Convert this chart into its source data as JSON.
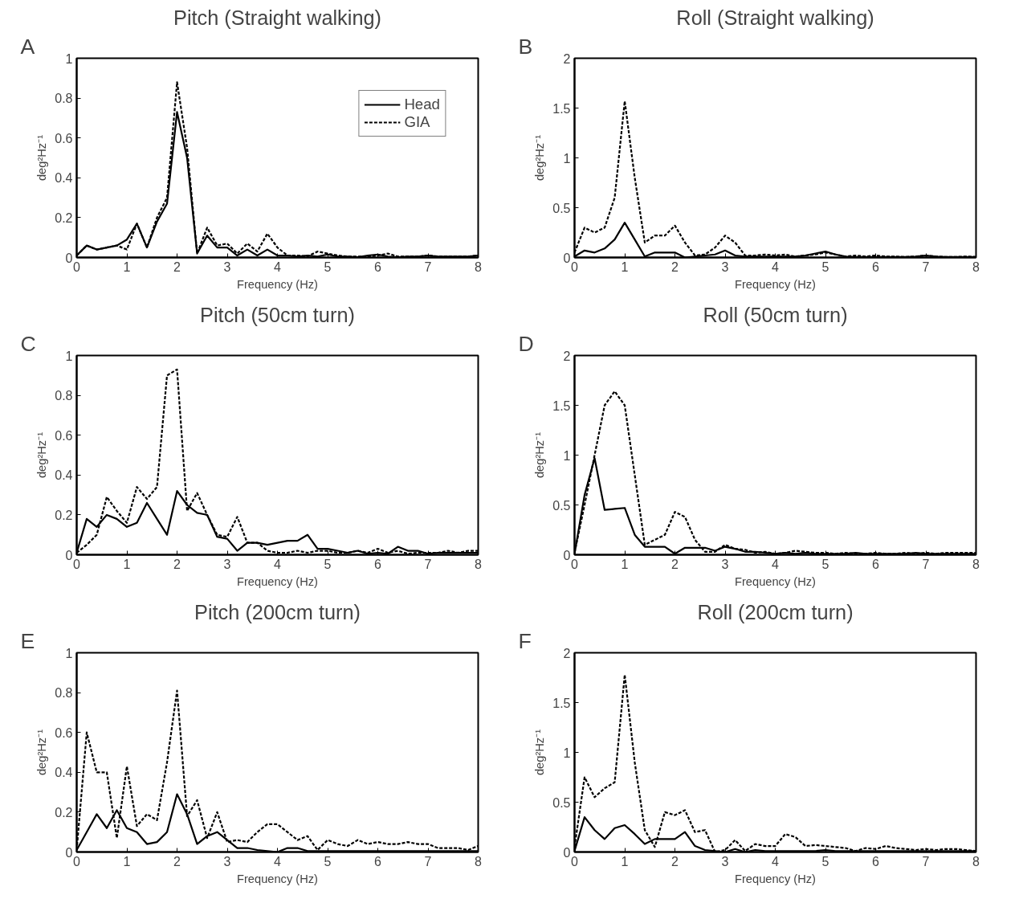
{
  "chart_data": [
    {
      "type": "line",
      "title": "Pitch (Straight walking)",
      "xlabel": "Frequency (Hz)",
      "ylabel": "deg²Hz⁻¹",
      "annotations": [
        "A"
      ],
      "legend": "top right",
      "x": [
        0,
        0.2,
        0.4,
        0.6,
        0.8,
        1,
        1.2,
        1.4,
        1.6,
        1.8,
        2,
        2.2,
        2.4,
        2.6,
        2.8,
        3,
        3.2,
        3.4,
        3.6,
        3.8,
        4,
        4.2,
        4.4,
        4.6,
        4.8,
        5,
        5.2,
        5.4,
        5.6,
        5.8,
        6,
        6.2,
        6.4,
        6.6,
        6.8,
        7,
        7.2,
        7.4,
        7.6,
        7.8,
        8
      ],
      "xlim": [
        0,
        8
      ],
      "xticks": [
        0,
        1,
        2,
        3,
        4,
        5,
        6,
        7,
        8
      ],
      "ylim": [
        0,
        1
      ],
      "yticks": [
        0,
        0.2,
        0.4,
        0.6,
        0.8,
        1
      ],
      "series": [
        {
          "name": "Head",
          "color": "#000000",
          "line_style": "solid",
          "values": [
            0.01,
            0.06,
            0.04,
            0.05,
            0.06,
            0.09,
            0.17,
            0.05,
            0.18,
            0.27,
            0.73,
            0.5,
            0.02,
            0.11,
            0.05,
            0.05,
            0.01,
            0.04,
            0.01,
            0.04,
            0.01,
            0.01,
            0.005,
            0.01,
            0.005,
            0.015,
            0.005,
            0.005,
            0.002,
            0.01,
            0.015,
            0.005,
            0.002,
            0.005,
            0.005,
            0.01,
            0.005,
            0.005,
            0.005,
            0.005,
            0.01
          ]
        },
        {
          "name": "GIA",
          "color": "#000000",
          "line_style": "dashed",
          "values": [
            0.01,
            0.06,
            0.04,
            0.05,
            0.06,
            0.04,
            0.17,
            0.05,
            0.2,
            0.3,
            0.88,
            0.55,
            0.02,
            0.15,
            0.06,
            0.07,
            0.02,
            0.07,
            0.03,
            0.12,
            0.05,
            0.01,
            0.01,
            0.005,
            0.03,
            0.02,
            0.01,
            0.005,
            0.005,
            0.005,
            0.01,
            0.02,
            0.005,
            0.005,
            0.005,
            0.01,
            0.005,
            0.005,
            0.005,
            0.005,
            0.01
          ]
        }
      ]
    },
    {
      "type": "line",
      "title": "Roll (Straight walking)",
      "xlabel": "Frequency (Hz)",
      "ylabel": "deg²Hz⁻¹",
      "annotations": [
        "B"
      ],
      "x": [
        0,
        0.2,
        0.4,
        0.6,
        0.8,
        1,
        1.2,
        1.4,
        1.6,
        1.8,
        2,
        2.2,
        2.4,
        2.6,
        2.8,
        3,
        3.2,
        3.4,
        3.6,
        3.8,
        4,
        4.2,
        4.4,
        4.6,
        4.8,
        5,
        5.2,
        5.4,
        5.6,
        5.8,
        6,
        6.2,
        6.4,
        6.6,
        6.8,
        7,
        7.2,
        7.4,
        7.6,
        7.8,
        8
      ],
      "xlim": [
        0,
        8
      ],
      "xticks": [
        0,
        1,
        2,
        3,
        4,
        5,
        6,
        7,
        8
      ],
      "ylim": [
        0,
        2
      ],
      "yticks": [
        0,
        0.5,
        1,
        1.5,
        2
      ],
      "series": [
        {
          "color": "#000000",
          "line_style": "solid",
          "values": [
            0.01,
            0.07,
            0.05,
            0.09,
            0.18,
            0.35,
            0.18,
            0.01,
            0.05,
            0.05,
            0.05,
            0,
            0.01,
            0.02,
            0.03,
            0.07,
            0.02,
            0.01,
            0.01,
            0.01,
            0.01,
            0.01,
            0.01,
            0.02,
            0.04,
            0.06,
            0.03,
            0.01,
            0.005,
            0.005,
            0.005,
            0.005,
            0.005,
            0.005,
            0.01,
            0.02,
            0.01,
            0.005,
            0.005,
            0.005,
            0.005
          ]
        },
        {
          "color": "#000000",
          "line_style": "dashed",
          "values": [
            0.05,
            0.3,
            0.25,
            0.3,
            0.6,
            1.57,
            0.8,
            0.15,
            0.22,
            0.22,
            0.32,
            0.15,
            0.02,
            0.03,
            0.1,
            0.22,
            0.15,
            0.02,
            0.02,
            0.03,
            0.02,
            0.03,
            0.01,
            0.02,
            0.03,
            0.05,
            0.03,
            0.01,
            0.02,
            0.01,
            0.02,
            0.01,
            0.01,
            0.005,
            0.01,
            0.02,
            0.01,
            0.005,
            0.005,
            0.01,
            0.005
          ]
        }
      ]
    },
    {
      "type": "line",
      "title": "Pitch (50cm turn)",
      "xlabel": "Frequency (Hz)",
      "ylabel": "deg²Hz⁻¹",
      "annotations": [
        "C"
      ],
      "x": [
        0,
        0.2,
        0.4,
        0.6,
        0.8,
        1,
        1.2,
        1.4,
        1.6,
        1.8,
        2,
        2.2,
        2.4,
        2.6,
        2.8,
        3,
        3.2,
        3.4,
        3.6,
        3.8,
        4,
        4.2,
        4.4,
        4.6,
        4.8,
        5,
        5.2,
        5.4,
        5.6,
        5.8,
        6,
        6.2,
        6.4,
        6.6,
        6.8,
        7,
        7.2,
        7.4,
        7.6,
        7.8,
        8
      ],
      "xlim": [
        0,
        8
      ],
      "xticks": [
        0,
        1,
        2,
        3,
        4,
        5,
        6,
        7,
        8
      ],
      "ylim": [
        0,
        1
      ],
      "yticks": [
        0,
        0.2,
        0.4,
        0.6,
        0.8,
        1
      ],
      "series": [
        {
          "color": "#000000",
          "line_style": "solid",
          "values": [
            0.01,
            0.18,
            0.14,
            0.2,
            0.18,
            0.14,
            0.16,
            0.26,
            0.18,
            0.1,
            0.32,
            0.25,
            0.21,
            0.2,
            0.09,
            0.08,
            0.02,
            0.06,
            0.06,
            0.05,
            0.06,
            0.07,
            0.07,
            0.1,
            0.03,
            0.03,
            0.02,
            0.01,
            0.02,
            0.005,
            0.01,
            0.005,
            0.04,
            0.02,
            0.02,
            0.005,
            0.01,
            0.01,
            0.01,
            0.01,
            0.01
          ]
        },
        {
          "color": "#000000",
          "line_style": "dashed",
          "values": [
            0.01,
            0.05,
            0.1,
            0.29,
            0.22,
            0.16,
            0.34,
            0.28,
            0.34,
            0.9,
            0.93,
            0.22,
            0.31,
            0.2,
            0.1,
            0.09,
            0.19,
            0.06,
            0.06,
            0.02,
            0.01,
            0.01,
            0.02,
            0.01,
            0.02,
            0.02,
            0.01,
            0.01,
            0.02,
            0.01,
            0.03,
            0.01,
            0.02,
            0.005,
            0.01,
            0.01,
            0.01,
            0.02,
            0.01,
            0.02,
            0.02
          ]
        }
      ]
    },
    {
      "type": "line",
      "title": "Roll (50cm turn)",
      "xlabel": "Frequency (Hz)",
      "ylabel": "deg²Hz⁻¹",
      "annotations": [
        "D"
      ],
      "x": [
        0,
        0.2,
        0.4,
        0.6,
        0.8,
        1,
        1.2,
        1.4,
        1.6,
        1.8,
        2,
        2.2,
        2.4,
        2.6,
        2.8,
        3,
        3.2,
        3.4,
        3.6,
        3.8,
        4,
        4.2,
        4.4,
        4.6,
        4.8,
        5,
        5.2,
        5.4,
        5.6,
        5.8,
        6,
        6.2,
        6.4,
        6.6,
        6.8,
        7,
        7.2,
        7.4,
        7.6,
        7.8,
        8
      ],
      "xlim": [
        0,
        8
      ],
      "xticks": [
        0,
        1,
        2,
        3,
        4,
        5,
        6,
        7,
        8
      ],
      "ylim": [
        0,
        2
      ],
      "yticks": [
        0,
        0.5,
        1,
        1.5,
        2
      ],
      "series": [
        {
          "color": "#000000",
          "line_style": "solid",
          "values": [
            0.01,
            0.6,
            0.97,
            0.45,
            0.46,
            0.47,
            0.2,
            0.08,
            0.08,
            0.08,
            0.01,
            0.07,
            0.07,
            0.07,
            0.04,
            0.08,
            0.06,
            0.03,
            0.03,
            0.02,
            0.01,
            0.02,
            0.01,
            0.02,
            0.01,
            0.01,
            0.01,
            0.01,
            0.02,
            0.01,
            0.01,
            0.01,
            0.01,
            0.01,
            0.02,
            0.01,
            0.01,
            0.01,
            0.01,
            0.01,
            0.01
          ]
        },
        {
          "color": "#000000",
          "line_style": "dashed",
          "values": [
            0.02,
            0.5,
            1,
            1.5,
            1.64,
            1.5,
            0.8,
            0.1,
            0.15,
            0.2,
            0.43,
            0.38,
            0.15,
            0.03,
            0.03,
            0.1,
            0.06,
            0.05,
            0.02,
            0.03,
            0.01,
            0.02,
            0.04,
            0.03,
            0.02,
            0.02,
            0.01,
            0.02,
            0.01,
            0.01,
            0.02,
            0.01,
            0.01,
            0.02,
            0.01,
            0.02,
            0.01,
            0.02,
            0.02,
            0.02,
            0.02
          ]
        }
      ]
    },
    {
      "type": "line",
      "title": "Pitch (200cm turn)",
      "xlabel": "Frequency (Hz)",
      "ylabel": "deg²Hz⁻¹",
      "annotations": [
        "E"
      ],
      "x": [
        0,
        0.2,
        0.4,
        0.6,
        0.8,
        1,
        1.2,
        1.4,
        1.6,
        1.8,
        2,
        2.2,
        2.4,
        2.6,
        2.8,
        3,
        3.2,
        3.4,
        3.6,
        3.8,
        4,
        4.2,
        4.4,
        4.6,
        4.8,
        5,
        5.2,
        5.4,
        5.6,
        5.8,
        6,
        6.2,
        6.4,
        6.6,
        6.8,
        7,
        7.2,
        7.4,
        7.6,
        7.8,
        8
      ],
      "xlim": [
        0,
        8
      ],
      "xticks": [
        0,
        1,
        2,
        3,
        4,
        5,
        6,
        7,
        8
      ],
      "ylim": [
        0,
        1
      ],
      "yticks": [
        0,
        0.2,
        0.4,
        0.6,
        0.8,
        1
      ],
      "series": [
        {
          "color": "#000000",
          "line_style": "solid",
          "values": [
            0.01,
            0.1,
            0.19,
            0.12,
            0.21,
            0.12,
            0.1,
            0.04,
            0.05,
            0.1,
            0.29,
            0.19,
            0.04,
            0.08,
            0.1,
            0.06,
            0.02,
            0.02,
            0.01,
            0.005,
            0,
            0.02,
            0.02,
            0.005,
            0.005,
            0.005,
            0.005,
            0.005,
            0.005,
            0.005,
            0.005,
            0.005,
            0.005,
            0.005,
            0.005,
            0.005,
            0.005,
            0.005,
            0.005,
            0.005,
            0.005
          ]
        },
        {
          "color": "#000000",
          "line_style": "dashed",
          "values": [
            0.01,
            0.6,
            0.4,
            0.4,
            0.07,
            0.43,
            0.13,
            0.19,
            0.16,
            0.45,
            0.81,
            0.18,
            0.26,
            0.07,
            0.2,
            0.05,
            0.06,
            0.05,
            0.1,
            0.14,
            0.14,
            0.1,
            0.06,
            0.08,
            0.01,
            0.06,
            0.04,
            0.03,
            0.06,
            0.04,
            0.05,
            0.04,
            0.04,
            0.05,
            0.04,
            0.04,
            0.02,
            0.02,
            0.02,
            0.01,
            0.03
          ]
        }
      ]
    },
    {
      "type": "line",
      "title": "Roll (200cm turn)",
      "xlabel": "Frequency (Hz)",
      "ylabel": "deg²Hz⁻¹",
      "annotations": [
        "F"
      ],
      "x": [
        0,
        0.2,
        0.4,
        0.6,
        0.8,
        1,
        1.2,
        1.4,
        1.6,
        1.8,
        2,
        2.2,
        2.4,
        2.6,
        2.8,
        3,
        3.2,
        3.4,
        3.6,
        3.8,
        4,
        4.2,
        4.4,
        4.6,
        4.8,
        5,
        5.2,
        5.4,
        5.6,
        5.8,
        6,
        6.2,
        6.4,
        6.6,
        6.8,
        7,
        7.2,
        7.4,
        7.6,
        7.8,
        8
      ],
      "xlim": [
        0,
        8
      ],
      "xticks": [
        0,
        1,
        2,
        3,
        4,
        5,
        6,
        7,
        8
      ],
      "ylim": [
        0,
        2
      ],
      "yticks": [
        0,
        0.5,
        1,
        1.5,
        2
      ],
      "series": [
        {
          "color": "#000000",
          "line_style": "solid",
          "values": [
            0.01,
            0.35,
            0.22,
            0.13,
            0.24,
            0.27,
            0.18,
            0.08,
            0.13,
            0.13,
            0.13,
            0.2,
            0.06,
            0.02,
            0.01,
            0,
            0.03,
            0,
            0.02,
            0.01,
            0.01,
            0.01,
            0.01,
            0.01,
            0.01,
            0.02,
            0.01,
            0.01,
            0.01,
            0.01,
            0.01,
            0.01,
            0.01,
            0.01,
            0.01,
            0.01,
            0.01,
            0.01,
            0.01,
            0.01,
            0.01
          ]
        },
        {
          "color": "#000000",
          "line_style": "dashed",
          "values": [
            0.05,
            0.75,
            0.55,
            0.64,
            0.7,
            1.78,
            0.9,
            0.22,
            0.05,
            0.4,
            0.37,
            0.42,
            0.2,
            0.22,
            0,
            0.02,
            0.12,
            0.01,
            0.08,
            0.06,
            0.06,
            0.18,
            0.15,
            0.06,
            0.07,
            0.06,
            0.05,
            0.04,
            0.01,
            0.04,
            0.03,
            0.06,
            0.04,
            0.03,
            0.02,
            0.03,
            0.02,
            0.03,
            0.03,
            0.02,
            0.01
          ]
        }
      ]
    }
  ]
}
